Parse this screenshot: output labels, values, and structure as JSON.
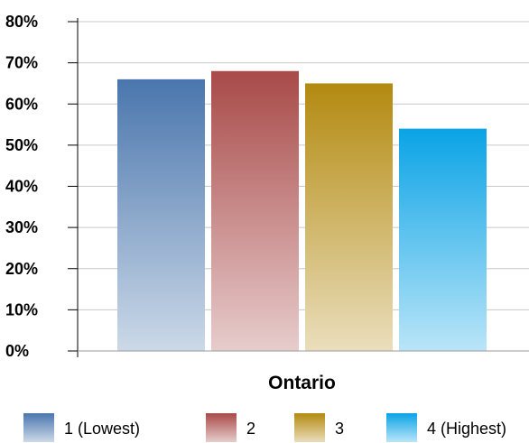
{
  "chart_data": {
    "type": "bar",
    "categories": [
      "Ontario"
    ],
    "series": [
      {
        "name": "1 (Lowest)",
        "values": [
          66
        ],
        "color": "#4a76ad"
      },
      {
        "name": "2",
        "values": [
          68
        ],
        "color": "#a84a48"
      },
      {
        "name": "3",
        "values": [
          65
        ],
        "color": "#b38a10"
      },
      {
        "name": "4 (Highest)",
        "values": [
          54
        ],
        "color": "#0aa3e6"
      }
    ],
    "y_ticks": [
      "0%",
      "10%",
      "20%",
      "30%",
      "40%",
      "50%",
      "60%",
      "70%",
      "80%"
    ],
    "ylim": [
      0,
      80
    ],
    "y_tick_step": 10,
    "grid": true,
    "legend_position": "bottom",
    "title": "",
    "xlabel": "",
    "ylabel": ""
  }
}
